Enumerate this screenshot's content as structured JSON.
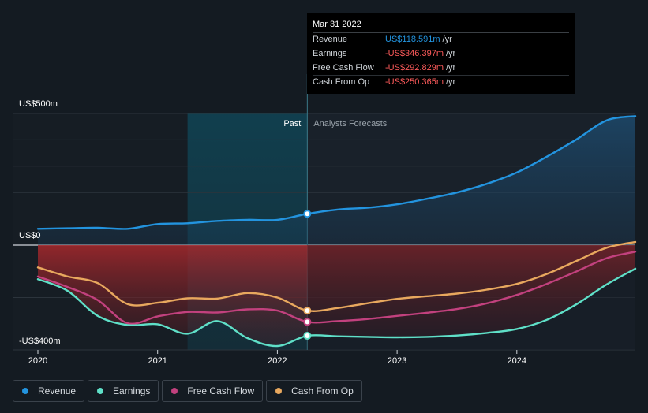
{
  "tooltip": {
    "date": "Mar 31 2022",
    "rows": [
      {
        "label": "Revenue",
        "value": "US$118.591m",
        "unit": "/yr",
        "color": "#2394df"
      },
      {
        "label": "Earnings",
        "value": "-US$346.397m",
        "unit": "/yr",
        "color": "#ff5b5b"
      },
      {
        "label": "Free Cash Flow",
        "value": "-US$292.829m",
        "unit": "/yr",
        "color": "#ff5b5b"
      },
      {
        "label": "Cash From Op",
        "value": "-US$250.365m",
        "unit": "/yr",
        "color": "#ff5b5b"
      }
    ]
  },
  "legend": [
    {
      "label": "Revenue",
      "color": "#2394df"
    },
    {
      "label": "Earnings",
      "color": "#5fe0c8"
    },
    {
      "label": "Free Cash Flow",
      "color": "#c2417e"
    },
    {
      "label": "Cash From Op",
      "color": "#e8a85e"
    }
  ],
  "chart_data": {
    "type": "line",
    "title": "",
    "xlabel": "",
    "ylabel": "",
    "ylim": [
      -400,
      500
    ],
    "xlim": [
      2019.85,
      2024.99
    ],
    "y_axis_labels": [
      "US$500m",
      "US$0",
      "-US$400m"
    ],
    "x_tick_labels": [
      "2020",
      "2021",
      "2022",
      "2023",
      "2024"
    ],
    "x_tick_values": [
      2020,
      2021,
      2022,
      2023,
      2024
    ],
    "section_labels": {
      "past": "Past",
      "forecast": "Analysts Forecasts"
    },
    "divider_x": 2022.25,
    "highlight_start": 2021.25,
    "series": [
      {
        "name": "Revenue",
        "color": "#2394df",
        "x": [
          2020.0,
          2020.25,
          2020.5,
          2020.75,
          2021.0,
          2021.25,
          2021.5,
          2021.75,
          2022.0,
          2022.25,
          2022.5,
          2022.75,
          2023.0,
          2023.25,
          2023.5,
          2023.75,
          2024.0,
          2024.25,
          2024.5,
          2024.75,
          2024.99
        ],
        "values": [
          62,
          64,
          66,
          62,
          80,
          83,
          92,
          96,
          96,
          119,
          135,
          142,
          155,
          176,
          200,
          233,
          276,
          336,
          402,
          474,
          490
        ]
      },
      {
        "name": "Earnings",
        "color": "#5fe0c8",
        "x": [
          2020.0,
          2020.25,
          2020.5,
          2020.75,
          2021.0,
          2021.25,
          2021.5,
          2021.75,
          2022.0,
          2022.25,
          2022.5,
          2022.75,
          2023.0,
          2023.25,
          2023.5,
          2023.75,
          2024.0,
          2024.25,
          2024.5,
          2024.75,
          2024.99
        ],
        "values": [
          -130,
          -175,
          -270,
          -305,
          -302,
          -338,
          -290,
          -355,
          -385,
          -346,
          -348,
          -350,
          -352,
          -350,
          -345,
          -335,
          -320,
          -285,
          -225,
          -150,
          -90
        ]
      },
      {
        "name": "Free Cash Flow",
        "color": "#c2417e",
        "x": [
          2020.0,
          2020.25,
          2020.5,
          2020.75,
          2021.0,
          2021.25,
          2021.5,
          2021.75,
          2022.0,
          2022.25,
          2022.5,
          2022.75,
          2023.0,
          2023.25,
          2023.5,
          2023.75,
          2024.0,
          2024.25,
          2024.5,
          2024.75,
          2024.99
        ],
        "values": [
          -120,
          -160,
          -210,
          -298,
          -272,
          -255,
          -257,
          -245,
          -250,
          -293,
          -290,
          -282,
          -270,
          -258,
          -244,
          -222,
          -190,
          -148,
          -100,
          -50,
          -25
        ]
      },
      {
        "name": "Cash From Op",
        "color": "#e8a85e",
        "x": [
          2020.0,
          2020.25,
          2020.5,
          2020.75,
          2021.0,
          2021.25,
          2021.5,
          2021.75,
          2022.0,
          2022.25,
          2022.5,
          2022.75,
          2023.0,
          2023.25,
          2023.5,
          2023.75,
          2024.0,
          2024.25,
          2024.5,
          2024.75,
          2024.99
        ],
        "values": [
          -85,
          -120,
          -145,
          -225,
          -220,
          -203,
          -204,
          -183,
          -200,
          -250,
          -240,
          -222,
          -205,
          -195,
          -185,
          -170,
          -148,
          -110,
          -60,
          -10,
          12
        ]
      }
    ]
  }
}
